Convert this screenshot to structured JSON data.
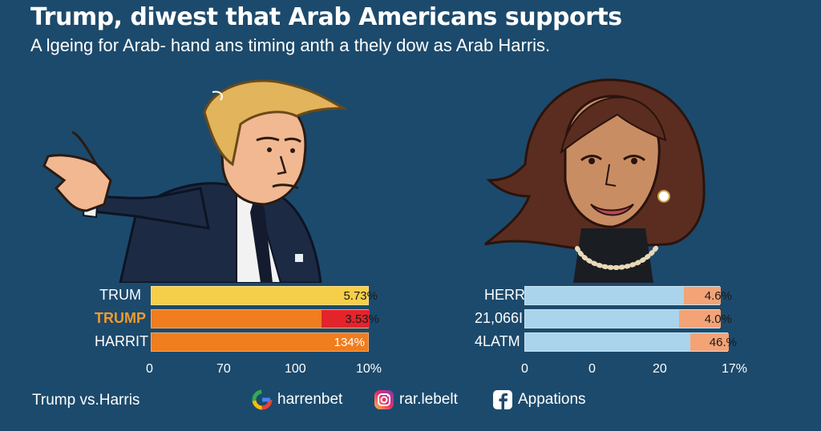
{
  "header": {
    "title": "Trump, diwest that Arab Americans supports",
    "subtitle": "A lgeing for Arab- hand ans timing anth a thely dow as Arab Harris."
  },
  "left_chart": {
    "rows": [
      {
        "label": "TRUM",
        "value_text": "5.73%",
        "label_color": "#ffffff"
      },
      {
        "label": "TRUMP",
        "value_text": "3.53%",
        "label_color": "#f29a2e"
      },
      {
        "label": "HARRIT",
        "value_text": "134%",
        "label_color": "#ffffff"
      }
    ],
    "ticks": [
      "0",
      "70",
      "100",
      "10%"
    ]
  },
  "right_chart": {
    "rows": [
      {
        "label": "HERR",
        "value_text": "4.6%"
      },
      {
        "label": "21,066I",
        "value_text": "4.0%"
      },
      {
        "label": "4LATM",
        "value_text": "46.%"
      }
    ],
    "ticks": [
      "0",
      "0",
      "20",
      "17%"
    ]
  },
  "footer": {
    "caption": "Trump vs.Harris",
    "socials": [
      {
        "icon": "google-icon",
        "label": "harrenbet"
      },
      {
        "icon": "instagram-icon",
        "label": "rar.lebelt"
      },
      {
        "icon": "facebook-icon",
        "label": "Appations"
      }
    ]
  },
  "colors": {
    "background": "#1c4a6c",
    "yellow": "#f6cf4a",
    "orange": "#f07d1e",
    "red": "#e3242b",
    "light_blue": "#a9d4ec",
    "peach": "#f3a376"
  }
}
